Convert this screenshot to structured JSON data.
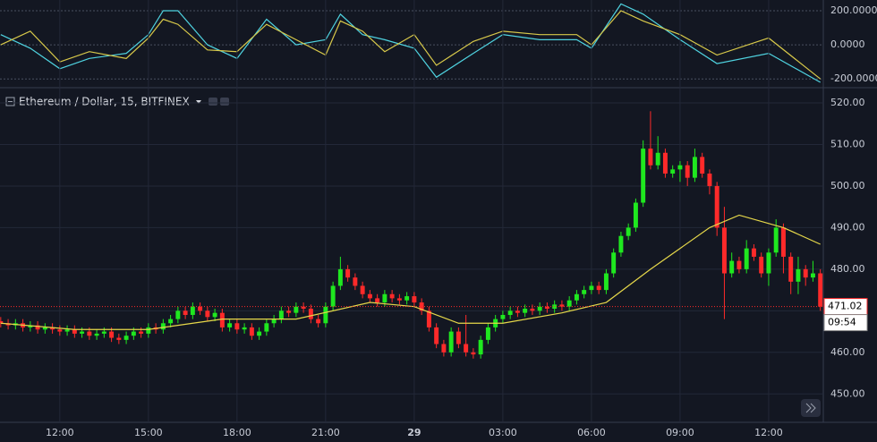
{
  "chart_data": [
    {
      "type": "line",
      "xlim": [
        -0.1,
        111.4
      ],
      "ylim": [
        -251.4,
        262.9
      ],
      "yticks": [
        {
          "value": 200,
          "label": "200.0000"
        },
        {
          "value": 0,
          "label": "0.0000"
        },
        {
          "value": -200,
          "label": "-200.0000"
        }
      ],
      "series": [
        {
          "color": "#4fd3e0",
          "x": [
            0,
            4,
            8,
            12,
            17,
            20,
            22,
            24,
            28,
            32,
            36,
            40,
            44,
            46,
            49,
            52,
            56,
            59,
            64,
            68,
            73,
            78,
            80,
            84,
            87,
            92,
            97,
            104,
            111
          ],
          "values": [
            60,
            -20,
            -140,
            -80,
            -50,
            60,
            200,
            200,
            0,
            -80,
            150,
            0,
            30,
            180,
            60,
            30,
            -20,
            -190,
            -50,
            60,
            30,
            30,
            -20,
            240,
            180,
            30,
            -110,
            -50,
            -220
          ]
        },
        {
          "color": "#d8c94a",
          "x": [
            0,
            4,
            8,
            12,
            17,
            20,
            22,
            24,
            28,
            32,
            36,
            40,
            44,
            46,
            49,
            52,
            56,
            59,
            64,
            68,
            73,
            78,
            80,
            84,
            87,
            92,
            97,
            104,
            111
          ],
          "values": [
            0,
            80,
            -100,
            -40,
            -80,
            40,
            150,
            120,
            -30,
            -40,
            120,
            30,
            -60,
            140,
            80,
            -40,
            60,
            -120,
            20,
            80,
            60,
            60,
            0,
            200,
            140,
            60,
            -60,
            40,
            -200
          ]
        }
      ]
    },
    {
      "type": "candlestick",
      "title": "Ethereum / Dollar, 15, BITFINEX",
      "xlim": [
        -0.1,
        111.4
      ],
      "ylim": [
        443.6,
        522.8
      ],
      "xticks": [
        {
          "value": 8,
          "label": "12:00"
        },
        {
          "value": 20,
          "label": "15:00"
        },
        {
          "value": 32,
          "label": "18:00"
        },
        {
          "value": 44,
          "label": "21:00"
        },
        {
          "value": 56,
          "label": "29"
        },
        {
          "value": 68,
          "label": "03:00"
        },
        {
          "value": 80,
          "label": "06:00"
        },
        {
          "value": 92,
          "label": "09:00"
        },
        {
          "value": 104,
          "label": "12:00"
        }
      ],
      "yticks": [
        {
          "value": 450,
          "label": "450.00"
        },
        {
          "value": 460,
          "label": "460.00"
        },
        {
          "value": 470,
          "label": "470.00"
        },
        {
          "value": 480,
          "label": "480.00"
        },
        {
          "value": 490,
          "label": "490.00"
        },
        {
          "value": 500,
          "label": "500.00"
        },
        {
          "value": 510,
          "label": "510.00"
        },
        {
          "value": 520,
          "label": "520.00"
        }
      ],
      "up_color": "#1fe81f",
      "down_color": "#ff2a2a",
      "open": [
        467.5,
        467,
        466.5,
        467,
        466,
        466.5,
        465.5,
        466,
        465.5,
        465,
        465.5,
        464.5,
        465,
        464,
        464.5,
        465,
        463.5,
        463,
        464,
        465,
        464.5,
        466,
        465.5,
        467,
        468,
        470,
        469,
        471,
        470,
        468.5,
        469.5,
        466,
        467,
        465.5,
        466,
        464,
        465,
        467,
        468,
        470,
        469.5,
        471,
        470.5,
        468,
        467,
        471,
        476,
        480,
        478,
        476,
        474,
        473,
        472,
        474,
        473,
        472.5,
        473.5,
        472,
        470,
        466,
        462,
        460,
        465,
        462,
        460,
        459.5,
        463,
        466,
        468,
        469,
        470,
        469.5,
        470.5,
        470,
        471,
        470.5,
        471.5,
        471,
        472.5,
        474,
        475,
        476,
        475,
        479,
        484,
        488,
        490,
        496,
        509,
        505,
        508,
        503,
        504,
        505,
        502,
        507,
        503,
        500,
        490,
        479,
        482,
        480,
        485,
        483,
        479,
        484,
        490,
        483,
        477,
        480,
        478,
        479
      ],
      "high": [
        468.5,
        468,
        468,
        468,
        467.5,
        467.5,
        467,
        467,
        466.5,
        466.5,
        466.5,
        466,
        466,
        465.5,
        466,
        466,
        464.5,
        465,
        466,
        466,
        467,
        467,
        468,
        469,
        471,
        471,
        472,
        472,
        471,
        470.5,
        470.5,
        468,
        468,
        467,
        467,
        466,
        468,
        469,
        471,
        471,
        472,
        472,
        471.5,
        469,
        472,
        477,
        483,
        481,
        479,
        477,
        475,
        474,
        475,
        475,
        474,
        474.5,
        474.5,
        473,
        471,
        467,
        463,
        466,
        466,
        469,
        461,
        464,
        467,
        469,
        470,
        471,
        471,
        471.5,
        471.5,
        472,
        472,
        472.5,
        472.5,
        473.5,
        475,
        476,
        477,
        477,
        480,
        485,
        489,
        491,
        497,
        511,
        518,
        512,
        509,
        505,
        506,
        506,
        509,
        508,
        504,
        501,
        495,
        484,
        483,
        487,
        486,
        484,
        485,
        492,
        491,
        484,
        483,
        481,
        482,
        480
      ],
      "low": [
        466,
        465.5,
        465.5,
        465,
        465,
        464.5,
        464.5,
        464.5,
        464,
        464,
        463.5,
        463.5,
        463,
        463,
        463.5,
        462.5,
        462,
        462,
        463,
        463.5,
        463.5,
        464.5,
        464.5,
        466,
        467,
        468,
        468,
        469,
        467.5,
        467.5,
        465,
        465,
        464.5,
        464.5,
        463,
        463,
        464,
        466,
        467,
        468.5,
        468.5,
        469.5,
        467,
        466,
        466,
        470,
        475,
        477,
        475,
        473,
        472,
        471,
        471,
        472,
        471.5,
        471.5,
        471,
        469,
        465,
        461,
        459,
        459,
        461,
        459,
        458.5,
        458.5,
        462,
        465,
        467,
        468,
        468.5,
        468.5,
        469,
        469,
        469.5,
        469.5,
        470,
        470,
        471.5,
        473,
        474,
        474,
        474,
        478,
        483,
        487,
        489,
        495,
        504,
        504,
        502,
        502,
        501,
        500,
        501,
        502,
        498,
        488,
        468,
        478,
        479,
        479,
        482,
        478,
        476,
        483,
        479,
        474,
        474,
        476,
        477,
        470
      ],
      "close": [
        467,
        466.5,
        467,
        466,
        466.5,
        465.5,
        466,
        465.5,
        465,
        465.5,
        464.5,
        465,
        464,
        464.5,
        465,
        463.5,
        463,
        464,
        465,
        464.5,
        466,
        465.5,
        467,
        468,
        470,
        469,
        471,
        470,
        468.5,
        469.5,
        466,
        467,
        465.5,
        466,
        464,
        465,
        467,
        468,
        470,
        469.5,
        471,
        470.5,
        468,
        467,
        471,
        476,
        480,
        478,
        476,
        474,
        473,
        472,
        474,
        473,
        472.5,
        473.5,
        472,
        470,
        466,
        462,
        460,
        465,
        462,
        460,
        459.5,
        463,
        466,
        468,
        469,
        470,
        469.5,
        470.5,
        470,
        471,
        470.5,
        471.5,
        471,
        472.5,
        474,
        475,
        476,
        475,
        479,
        484,
        488,
        490,
        496,
        509,
        505,
        508,
        503,
        504,
        505,
        502,
        507,
        503,
        500,
        490,
        479,
        482,
        480,
        485,
        483,
        479,
        484,
        490,
        483,
        477,
        480,
        478,
        479,
        471
      ],
      "ma": {
        "color": "#e6d84a",
        "x": [
          0,
          10,
          20,
          30,
          40,
          50,
          56,
          62,
          68,
          76,
          82,
          88,
          96,
          100,
          106,
          111
        ],
        "values": [
          467,
          465.5,
          465.5,
          468,
          468,
          472,
          471,
          467,
          467,
          469.5,
          472,
          480,
          490,
          493,
          490,
          486
        ]
      },
      "last_price": {
        "value": 471.02,
        "label": "471.02"
      },
      "countdown": "09:54"
    }
  ]
}
